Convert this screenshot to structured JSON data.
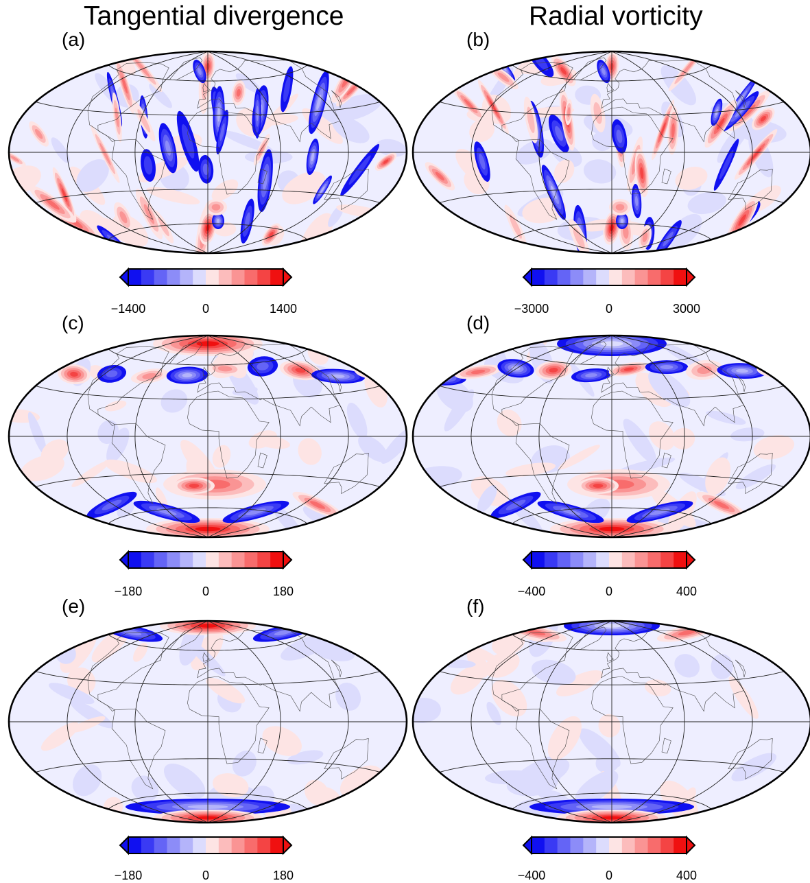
{
  "columns": [
    "Tangential divergence",
    "Radial vorticity"
  ],
  "colors": {
    "negative": [
      "#1010f0",
      "#3a3af4",
      "#6464f6",
      "#8c8cf8",
      "#b4b4fa",
      "#dcdcfd"
    ],
    "positive": [
      "#fde4e4",
      "#fcbcbc",
      "#fa9494",
      "#f86c6c",
      "#f44444",
      "#f01010"
    ],
    "background": "#eeeeff",
    "land_line": "#444444",
    "grid_line": "#222222"
  },
  "panels": [
    {
      "label": "(a)",
      "colorbar": {
        "min": "−1400",
        "mid": "0",
        "max": "1400"
      }
    },
    {
      "label": "(b)",
      "colorbar": {
        "min": "−3000",
        "mid": "0",
        "max": "3000"
      }
    },
    {
      "label": "(c)",
      "colorbar": {
        "min": "−180",
        "mid": "0",
        "max": "180"
      }
    },
    {
      "label": "(d)",
      "colorbar": {
        "min": "−400",
        "mid": "0",
        "max": "400"
      }
    },
    {
      "label": "(e)",
      "colorbar": {
        "min": "−180",
        "mid": "0",
        "max": "180"
      }
    },
    {
      "label": "(f)",
      "colorbar": {
        "min": "−400",
        "mid": "0",
        "max": "400"
      }
    }
  ]
}
